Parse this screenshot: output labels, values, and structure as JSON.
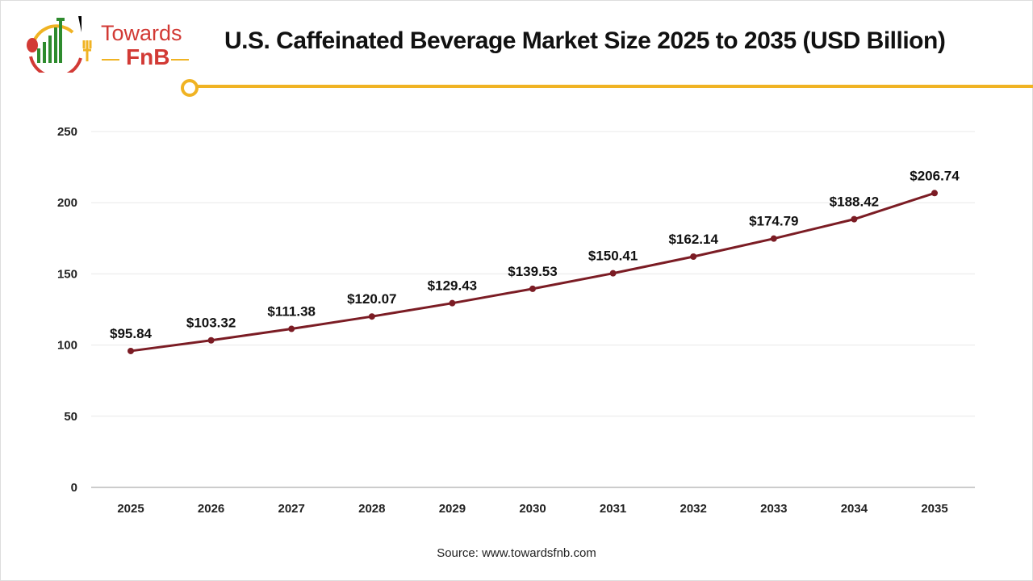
{
  "logo": {
    "line1": "Towards",
    "line2": "FnB"
  },
  "header": {
    "title": "U.S. Caffeinated Beverage Market Size 2025 to 2035 (USD Billion)"
  },
  "footer": {
    "source": "Source: www.towardsfnb.com"
  },
  "colors": {
    "line": "#7b1c24",
    "accent": "#f0b323",
    "grid": "#e8e8e8",
    "axis": "#bbbbbb"
  },
  "chart_data": {
    "type": "line",
    "title": "U.S. Caffeinated Beverage Market Size 2025 to 2035 (USD Billion)",
    "xlabel": "",
    "ylabel": "",
    "categories": [
      "2025",
      "2026",
      "2027",
      "2028",
      "2029",
      "2030",
      "2031",
      "2032",
      "2033",
      "2034",
      "2035"
    ],
    "values": [
      95.84,
      103.32,
      111.38,
      120.07,
      129.43,
      139.53,
      150.41,
      162.14,
      174.79,
      188.42,
      206.74
    ],
    "data_labels": [
      "$95.84",
      "$103.32",
      "$111.38",
      "$120.07",
      "$129.43",
      "$139.53",
      "$150.41",
      "$162.14",
      "$174.79",
      "$188.42",
      "$206.74"
    ],
    "ylim": [
      0,
      250
    ],
    "yticks": [
      "0",
      "50",
      "100",
      "150",
      "200",
      "250"
    ],
    "grid": true,
    "legend": "none"
  }
}
